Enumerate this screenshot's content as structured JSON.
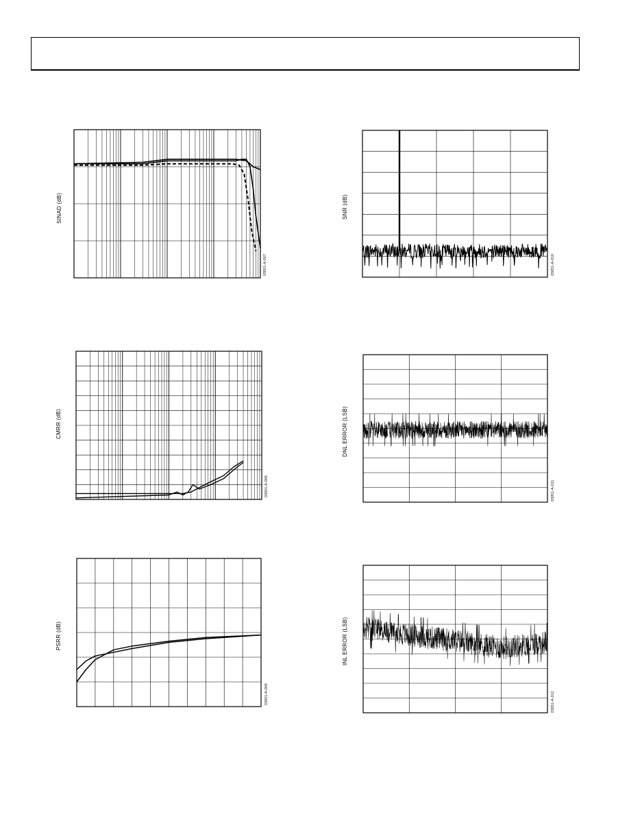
{
  "page": {
    "header_text": ""
  },
  "figures": [
    {
      "id": "sinad",
      "ylabel": "SINAD (dB)",
      "code": "03051-A-007"
    },
    {
      "id": "snr",
      "ylabel": "SNR (dB)",
      "code": "03051-A-010"
    },
    {
      "id": "cmrr",
      "ylabel": "CMRR (dB)",
      "code": "03051-A-008"
    },
    {
      "id": "dnl",
      "ylabel": "DNL ERROR (LSB)",
      "code": "03051-A-011"
    },
    {
      "id": "psrr",
      "ylabel": "PSRR (dB)",
      "code": "03051-A-009"
    },
    {
      "id": "inl",
      "ylabel": "INL ERROR (LSB)",
      "code": "03051-A-012"
    }
  ],
  "chart_data": [
    {
      "id": "sinad",
      "type": "line",
      "xscale": "log",
      "xlim": [
        1,
        10000
      ],
      "ylim": [
        0,
        100
      ],
      "grid": true,
      "series": [
        {
          "x": [
            1,
            30,
            100,
            1000,
            3000,
            5000,
            7000,
            10000
          ],
          "y": [
            77,
            78,
            80,
            80,
            80,
            79,
            75,
            73
          ]
        },
        {
          "x": [
            1,
            30,
            100,
            1000,
            3000,
            4000,
            5000,
            6000,
            7000,
            8000,
            10000
          ],
          "y": [
            77,
            77,
            79,
            79,
            79,
            80,
            80,
            75,
            60,
            42,
            20
          ]
        },
        {
          "style": "dashed",
          "x": [
            1,
            30,
            100,
            1000,
            2500,
            3500,
            4500,
            5500,
            6500,
            8000
          ],
          "y": [
            76,
            76,
            77,
            77,
            77,
            76,
            70,
            52,
            32,
            18
          ]
        }
      ]
    },
    {
      "id": "snr",
      "type": "line",
      "xlim": [
        0,
        5
      ],
      "ylim": [
        -160,
        -20
      ],
      "grid": true,
      "noise_floor": {
        "mean": -135,
        "spread": 7,
        "spikes": -152,
        "points": 480
      },
      "peaks": [
        {
          "x": 1.0,
          "y": -20
        },
        {
          "x": 2.0,
          "y": -130
        }
      ]
    },
    {
      "id": "cmrr",
      "type": "line",
      "xscale": "log",
      "xlim": [
        1,
        10000
      ],
      "ylim": [
        0,
        100
      ],
      "grid": true,
      "series": [
        {
          "x": [
            1,
            100,
            200,
            300,
            450,
            800,
            1500,
            2500,
            4000
          ],
          "y": [
            4,
            4,
            4,
            5,
            8,
            12,
            16,
            22,
            26
          ]
        },
        {
          "x": [
            1,
            100,
            150,
            200,
            260,
            330,
            450,
            800,
            1500,
            2500,
            4000
          ],
          "y": [
            1,
            3,
            5,
            3,
            5,
            10,
            7,
            10,
            14,
            20,
            25
          ]
        }
      ]
    },
    {
      "id": "dnl",
      "type": "line",
      "xlim": [
        0,
        4096
      ],
      "ylim": [
        -1,
        1
      ],
      "grid": true,
      "noise_band": {
        "center": -0.02,
        "spread": 0.12,
        "spikes": 0.22,
        "points": 900
      }
    },
    {
      "id": "psrr",
      "type": "line",
      "xlim": [
        0,
        100
      ],
      "ylim": [
        0,
        120
      ],
      "grid": true,
      "series": [
        {
          "x": [
            0,
            5,
            10,
            20,
            30,
            50,
            70,
            100
          ],
          "y": [
            30,
            37,
            41,
            44,
            47,
            52,
            55,
            58
          ]
        },
        {
          "x": [
            0,
            5,
            10,
            20,
            30,
            50,
            70,
            100
          ],
          "y": [
            20,
            30,
            38,
            46,
            49,
            53,
            56,
            58
          ]
        }
      ]
    },
    {
      "id": "inl",
      "type": "line",
      "xlim": [
        0,
        4096
      ],
      "ylim": [
        -1,
        1
      ],
      "grid": true,
      "noise_band": {
        "center": 0.02,
        "spread": 0.16,
        "spikes": 0.26,
        "points": 700,
        "drift": [
          0.15,
          0.05,
          -0.02,
          -0.12,
          -0.04
        ]
      }
    }
  ]
}
